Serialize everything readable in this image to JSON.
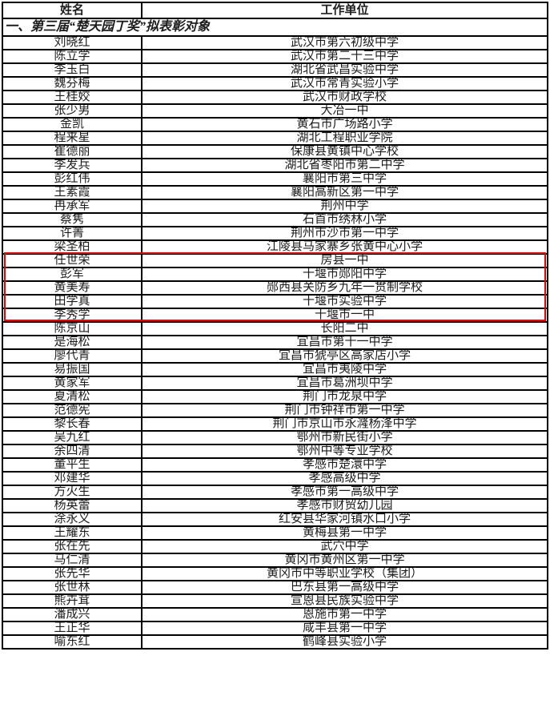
{
  "table": {
    "columns": [
      {
        "label": "姓名"
      },
      {
        "label": "工作单位"
      }
    ],
    "section_title": "一、第三届“楚天园丁奖”拟表彰对象",
    "rows": [
      {
        "name": "刘晓红",
        "unit": "武汉市第六初级中学"
      },
      {
        "name": "陈立学",
        "unit": "武汉市第二十三中学"
      },
      {
        "name": "李玉白",
        "unit": "湖北省武昌实验中学"
      },
      {
        "name": "魏芬梅",
        "unit": "武汉市常青实验小学"
      },
      {
        "name": "王桂姣",
        "unit": "武汉市财政学校"
      },
      {
        "name": "张少男",
        "unit": "大冶一中"
      },
      {
        "name": "金凯",
        "unit": "黄石市广场路小学"
      },
      {
        "name": "程来星",
        "unit": "湖北工程职业学院"
      },
      {
        "name": "崔德丽",
        "unit": "保康县黄镇中心学校"
      },
      {
        "name": "李发兵",
        "unit": "湖北省枣阳市第二中学"
      },
      {
        "name": "彭红伟",
        "unit": "襄阳市第三中学"
      },
      {
        "name": "王素霞",
        "unit": "襄阳高新区第一中学"
      },
      {
        "name": "冉承军",
        "unit": "荆州中学"
      },
      {
        "name": "蔡隽",
        "unit": "石首市绣林小学"
      },
      {
        "name": "许菁",
        "unit": "荆州市沙市第一中学"
      },
      {
        "name": "梁圣柏",
        "unit": "江陵县马家寨乡张黄中心小学"
      },
      {
        "name": "任世荣",
        "unit": "房县一中"
      },
      {
        "name": "彭军",
        "unit": "十堰市郧阳中学"
      },
      {
        "name": "黄美寿",
        "unit": "郧西县关防乡九年一贯制学校"
      },
      {
        "name": "田学真",
        "unit": "十堰市实验中学"
      },
      {
        "name": "李秀学",
        "unit": "十堰市一中"
      },
      {
        "name": "陈京山",
        "unit": "长阳二中"
      },
      {
        "name": "是海松",
        "unit": "宜昌市第十一中学"
      },
      {
        "name": "廖代青",
        "unit": "宜昌市猇亭区高家店小学"
      },
      {
        "name": "易振国",
        "unit": "宜昌市夷陵中学"
      },
      {
        "name": "黄家军",
        "unit": "宜昌市葛洲坝中学"
      },
      {
        "name": "夏清松",
        "unit": "荆门市龙泉中学"
      },
      {
        "name": "范德宪",
        "unit": "荆门市钟祥市第一中学"
      },
      {
        "name": "黎长春",
        "unit": "荆门市京山市永漋杨浲中学"
      },
      {
        "name": "吴九红",
        "unit": "鄂州市新民街小学"
      },
      {
        "name": "余四清",
        "unit": "鄂州中等专业学校"
      },
      {
        "name": "董平生",
        "unit": "孝感市楚澴中学"
      },
      {
        "name": "邓建华",
        "unit": "孝感高级中学"
      },
      {
        "name": "方火生",
        "unit": "孝感市第一高级中学"
      },
      {
        "name": "杨英蕾",
        "unit": "孝感市财贸幼儿园"
      },
      {
        "name": "涂永义",
        "unit": "红安县华家河镇水口小学"
      },
      {
        "name": "王耀东",
        "unit": "黄梅县第一中学"
      },
      {
        "name": "张在先",
        "unit": "武穴中学"
      },
      {
        "name": "马仁清",
        "unit": "黄冈市黄州区第一中学"
      },
      {
        "name": "张先华",
        "unit": "黄冈市中等职业学校（集团）"
      },
      {
        "name": "张世林",
        "unit": "巴东县第一高级中学"
      },
      {
        "name": "熊卉茸",
        "unit": "宣恩县民族实验中学"
      },
      {
        "name": "潘成兴",
        "unit": "恩施市第一中学"
      },
      {
        "name": "王正华",
        "unit": "咸丰县第一中学"
      },
      {
        "name": "喻东红",
        "unit": "鹤峰县实验小学"
      }
    ]
  },
  "highlight": {
    "color": "#dd0000",
    "first_row_name": "任世荣",
    "last_row_name": "李秀学"
  },
  "colors": {
    "border": "#000000",
    "text": "#1c1c1c",
    "background": "#ffffff"
  }
}
